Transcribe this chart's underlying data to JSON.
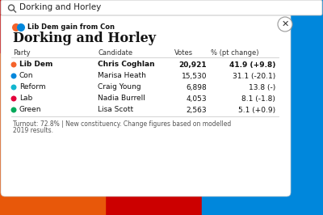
{
  "title": "Dorking and Horley",
  "subtitle": "Lib Dem gain from Con",
  "search_text": "Dorking and Horley",
  "col_headers": [
    "Party",
    "Candidate",
    "Votes",
    "% (pt change)"
  ],
  "rows": [
    {
      "party": "Lib Dem",
      "candidate": "Chris Coghlan",
      "votes": "20,921",
      "pct": "41.9 (+9.8)",
      "color": "#F4632B",
      "bold": true
    },
    {
      "party": "Con",
      "candidate": "Marisa Heath",
      "votes": "15,530",
      "pct": "31.1 (-20.1)",
      "color": "#0087DC",
      "bold": false
    },
    {
      "party": "Reform",
      "candidate": "Craig Young",
      "votes": "6,898",
      "pct": "13.8 (-)",
      "color": "#12B6CF",
      "bold": false
    },
    {
      "party": "Lab",
      "candidate": "Nadia Burrell",
      "votes": "4,053",
      "pct": "8.1 (-1.8)",
      "color": "#E4003B",
      "bold": false
    },
    {
      "party": "Green",
      "candidate": "Lisa Scott",
      "votes": "2,563",
      "pct": "5.1 (+0.9)",
      "color": "#02A95B",
      "bold": false
    }
  ],
  "footer_line1": "Turnout: 72.8% | New constituency. Change figures based on modelled",
  "footer_line2": "2019 results.",
  "lib_dem_color": "#F4632B",
  "con_color": "#0087DC",
  "map_red": "#CC0000",
  "map_orange": "#E8580A",
  "map_blue": "#0087DC"
}
